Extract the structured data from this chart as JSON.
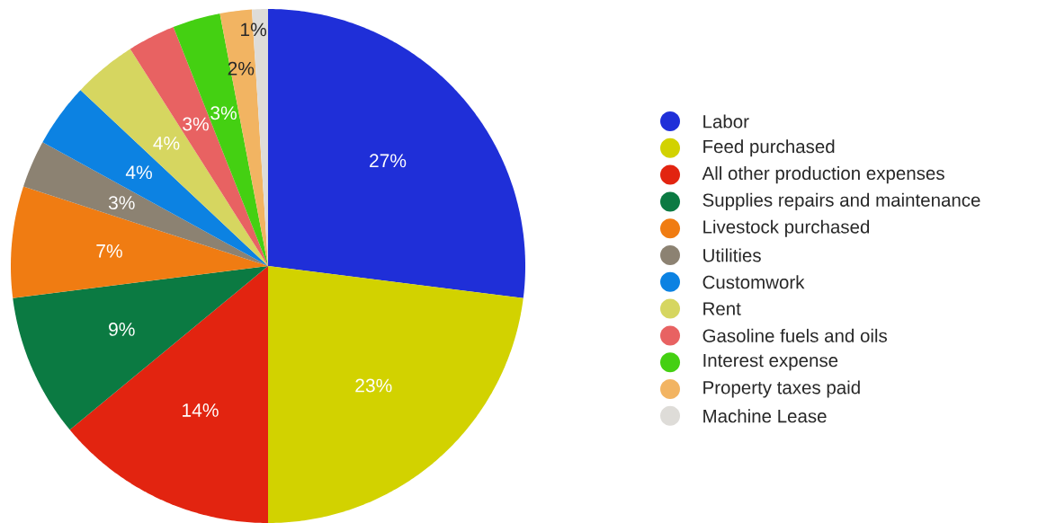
{
  "chart_data": {
    "type": "pie",
    "categories": [
      "Labor",
      "Feed purchased",
      "All other production expenses",
      "Supplies repairs and maintenance",
      "Livestock purchased",
      "Utilities",
      "Customwork",
      "Rent",
      "Gasoline fuels and oils",
      "Interest expense",
      "Property taxes paid",
      "Machine Lease"
    ],
    "values": [
      27,
      23,
      14,
      9,
      7,
      3,
      4,
      4,
      3,
      3,
      2,
      1
    ],
    "value_labels": [
      "27%",
      "23%",
      "14%",
      "9%",
      "7%",
      "3%",
      "4%",
      "4%",
      "3%",
      "3%",
      "2%",
      "1%"
    ],
    "colors": [
      "#1f2fd8",
      "#d2d200",
      "#e22410",
      "#0b7a42",
      "#f07c12",
      "#8c8272",
      "#0c82e2",
      "#d6d660",
      "#e86262",
      "#44d012",
      "#f2b462",
      "#dedcd8"
    ],
    "legend": "right"
  }
}
